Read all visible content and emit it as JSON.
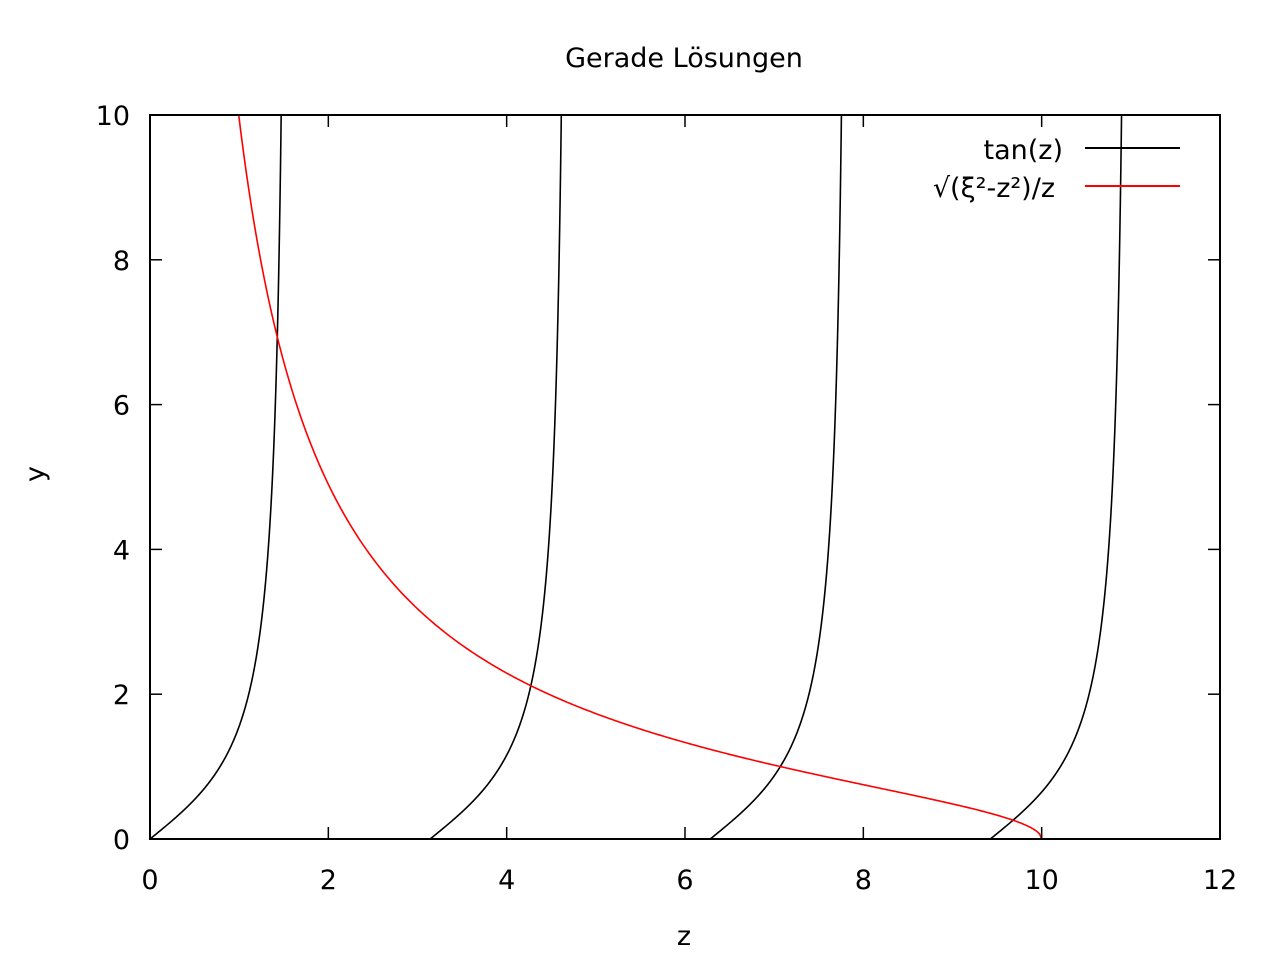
{
  "chart_data": {
    "type": "line",
    "title": "Gerade Lösungen",
    "xlabel": "z",
    "ylabel": "y",
    "xlim": [
      0,
      12
    ],
    "ylim": [
      0,
      10
    ],
    "x_ticks": [
      0,
      2,
      4,
      6,
      8,
      10,
      12
    ],
    "y_ticks": [
      0,
      2,
      4,
      6,
      8,
      10
    ],
    "x_tick_labels": [
      "0",
      "2",
      "4",
      "6",
      "8",
      "10",
      "12"
    ],
    "y_tick_labels": [
      "0",
      "2",
      "4",
      "6",
      "8",
      "10"
    ],
    "grid": false,
    "legend_position": "top-right",
    "series": [
      {
        "name": "tan(z)",
        "color": "#000000",
        "x": [
          0.0,
          0.25,
          0.5,
          0.75,
          1.0,
          1.2,
          1.3,
          1.4,
          1.43,
          1.46,
          3.1416,
          3.39,
          3.64,
          3.89,
          4.14,
          4.34,
          4.44,
          4.54,
          4.57,
          4.6,
          6.2832,
          6.53,
          6.78,
          7.03,
          7.28,
          7.48,
          7.58,
          7.68,
          7.71,
          7.74,
          9.4248,
          9.67,
          9.92,
          10.17,
          10.42,
          10.62,
          10.72,
          10.82,
          10.85,
          10.88
        ],
        "y": [
          0.0,
          0.26,
          0.55,
          0.93,
          1.56,
          2.57,
          3.6,
          5.8,
          7.07,
          9.0,
          0.0,
          0.26,
          0.55,
          0.93,
          1.56,
          2.57,
          3.6,
          5.8,
          7.07,
          9.0,
          0.0,
          0.26,
          0.55,
          0.93,
          1.56,
          2.57,
          3.6,
          5.8,
          7.07,
          9.0,
          0.0,
          0.26,
          0.55,
          0.93,
          1.56,
          2.57,
          3.6,
          5.8,
          7.07,
          9.0
        ]
      },
      {
        "name": "√(ξ²-z²)/z",
        "color": "#ff0000",
        "x": [
          0.99,
          1.1,
          1.25,
          1.4,
          1.6,
          1.8,
          2.0,
          2.5,
          3.0,
          3.5,
          4.0,
          4.5,
          5.0,
          5.5,
          6.0,
          6.5,
          7.0,
          7.5,
          8.0,
          8.5,
          9.0,
          9.3,
          9.5,
          9.7,
          9.85,
          9.95,
          10.0
        ],
        "y": [
          10.0,
          9.0,
          7.9,
          7.07,
          6.17,
          5.46,
          4.9,
          3.87,
          3.18,
          2.68,
          2.29,
          1.98,
          1.73,
          1.52,
          1.33,
          1.17,
          1.02,
          0.88,
          0.75,
          0.62,
          0.48,
          0.4,
          0.33,
          0.25,
          0.18,
          0.1,
          0.0
        ]
      }
    ]
  }
}
